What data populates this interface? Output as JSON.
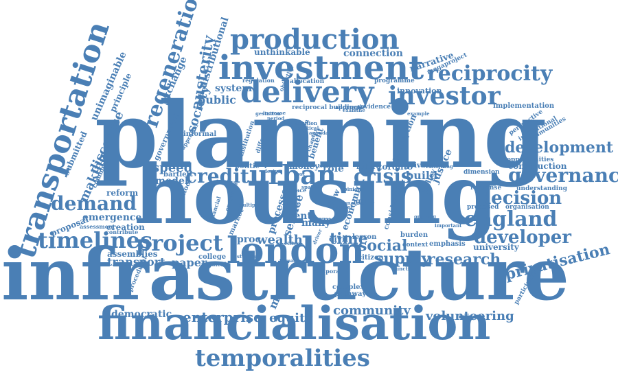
{
  "color": "#4a7fb5",
  "words": {
    "planning": "planning",
    "housing": "housing",
    "infrastructure": "infrastructure",
    "financialisation": "financialisation",
    "transportation": "transportation",
    "investment": "investment",
    "production": "production",
    "delivery": "delivery",
    "investor": "investor",
    "reciprocity": "reciprocity",
    "london": "london",
    "temporalities": "temporalities",
    "regeneration": "regeneration",
    "timelines": "timelines",
    "project": "project",
    "demand": "demand",
    "england": "england",
    "governance": "governance",
    "development": "development",
    "decision": "decision",
    "developer": "developer",
    "credit": "credit",
    "urban": "urban",
    "crisis": "crisis",
    "enterprise": "enterprise",
    "equity": "equity",
    "community": "community",
    "volunteering": "volunteering",
    "democratic": "democratic",
    "privatisation": "privatisation",
    "research": "research",
    "supply": "supply",
    "social": "social",
    "time": "time",
    "wealth": "wealth",
    "proc": "proc",
    "speed": "speed",
    "model": "model",
    "transport": "transport",
    "paper": "paper",
    "emergence": "emergence",
    "creation": "creation",
    "assemblies": "assemblies",
    "proposal": "proposal",
    "making": "making",
    "discourse": "discourse",
    "submitted": "submitted",
    "comment": "comment",
    "reform": "reform",
    "austerity": "austerity",
    "society": "society",
    "public": "public",
    "system": "system",
    "exchange": "exchange",
    "distributional": "distributional",
    "unimaginable": "unimaginable",
    "principle": "principle",
    "unthinkable": "unthinkable",
    "connection": "connection",
    "narrative": "narrative",
    "megaproject": "megaproject",
    "innovation": "innovation",
    "programme": "programme",
    "allocation": "allocation",
    "regulation": "regulation",
    "objective": "objective",
    "reciprocal_building": "reciprocal building",
    "approval": "approval",
    "evidence": "evidence",
    "implementation": "implementation",
    "perspective": "perspective",
    "institutional": "institutional",
    "communities": "communities",
    "opportunities": "opportunities",
    "construction": "construction",
    "dimension": "dimension",
    "response": "response",
    "understanding": "understanding",
    "proposed": "proposed",
    "organisation": "organisation",
    "university": "university",
    "participation": "participation",
    "build": "build",
    "policy": "policy",
    "justice": "justice",
    "perception": "perception",
    "future": "future",
    "toronto": "toronto",
    "private": "private",
    "exhibiting": "exhibiting",
    "money": "money",
    "role": "role",
    "politic": "politic",
    "impact": "impact",
    "bartlett": "bartlett",
    "informal": "informal",
    "government": "government",
    "school": "school",
    "market": "market",
    "service": "service",
    "processes": "processes",
    "form": "form",
    "rent": "rent",
    "many": "many",
    "economic": "economic",
    "good": "good",
    "slow": "slow",
    "civil": "civil",
    "lesson": "lesson",
    "burden": "burden",
    "context": "context",
    "emphasis": "emphasis",
    "considerable": "considerable",
    "citizen": "citizen",
    "complex": "complex",
    "pathway": "pathway",
    "temporal": "temporal",
    "function": "function",
    "more": "more",
    "college": "college",
    "physical": "physical",
    "procedural": "procedural",
    "contribute": "contribute",
    "assessment": "assessment",
    "benefit": "benefit",
    "written": "written",
    "chapter": "chapter",
    "agenda": "agenda",
    "political": "political",
    "solution": "solution",
    "period": "period",
    "gestation": "gestation",
    "increase": "increase",
    "appraisal": "appraisal",
    "institution": "institution",
    "different": "different",
    "delay": "delay",
    "example": "example",
    "important": "important",
    "ongoing": "ongoing",
    "studies": "studies",
    "space": "space",
    "sector": "sector",
    "case": "case",
    "cities": "cities",
    "formal": "formal",
    "opinion": "opinion",
    "analyse": "analyse",
    "examine": "examine",
    "broader": "broader",
    "design": "design",
    "multiple": "multiple",
    "operation": "operation",
    "financial": "financial",
    "driver": "driver",
    "cost": "cost",
    "spatial": "spatial"
  }
}
